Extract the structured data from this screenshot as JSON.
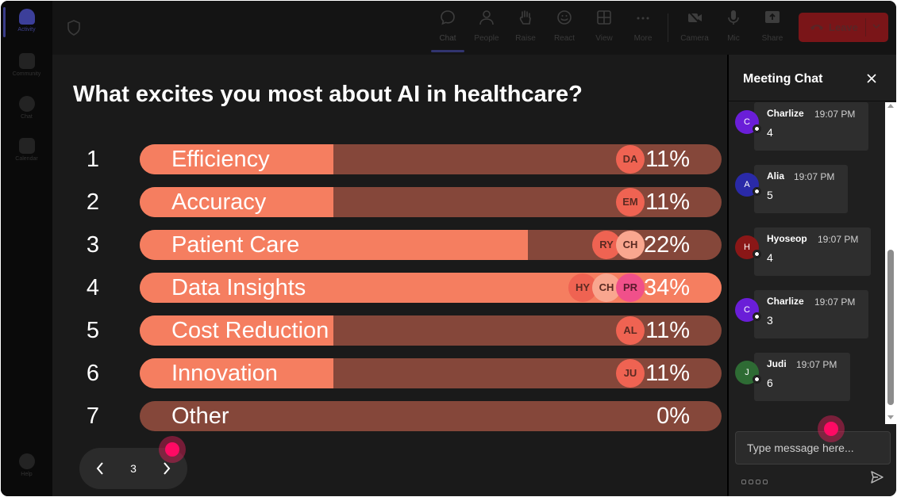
{
  "rail": {
    "items": [
      {
        "label": "Activity",
        "active": true
      },
      {
        "label": "Community"
      },
      {
        "label": "Chat"
      },
      {
        "label": "Calendar"
      }
    ],
    "help_label": "Help"
  },
  "toolbar": {
    "buttons": [
      {
        "label": "Chat",
        "icon": "chat-bubble-icon",
        "active": true
      },
      {
        "label": "People",
        "icon": "person-icon"
      },
      {
        "label": "Raise",
        "icon": "raise-hand-icon"
      },
      {
        "label": "React",
        "icon": "smiley-icon"
      },
      {
        "label": "View",
        "icon": "grid-view-icon"
      },
      {
        "label": "More",
        "icon": "more-dots-icon"
      },
      {
        "label": "Camera",
        "icon": "camera-off-icon"
      },
      {
        "label": "Mic",
        "icon": "mic-icon"
      },
      {
        "label": "Share",
        "icon": "share-icon"
      }
    ],
    "leave_label": "Leave",
    "leave_color": "#7a1518"
  },
  "poll": {
    "title": "What excites you most about AI in healthcare?",
    "options": [
      {
        "num": "1",
        "label": "Efficiency",
        "percent": "11%",
        "value": 0.11,
        "avatars": [
          "DA"
        ]
      },
      {
        "num": "2",
        "label": "Accuracy",
        "percent": "11%",
        "value": 0.11,
        "avatars": [
          "EM"
        ]
      },
      {
        "num": "3",
        "label": "Patient Care",
        "percent": "22%",
        "value": 0.22,
        "avatars": [
          "RY",
          "CH"
        ]
      },
      {
        "num": "4",
        "label": "Data Insights",
        "percent": "34%",
        "value": 0.34,
        "avatars": [
          "HY",
          "CH",
          "PR"
        ]
      },
      {
        "num": "5",
        "label": "Cost Reduction",
        "percent": "11%",
        "value": 0.11,
        "avatars": [
          "AL"
        ]
      },
      {
        "num": "6",
        "label": "Innovation",
        "percent": "11%",
        "value": 0.11,
        "avatars": [
          "JU"
        ]
      },
      {
        "num": "7",
        "label": "Other",
        "percent": "0%",
        "value": 0,
        "avatars": []
      }
    ],
    "colors": {
      "fill": "#f57e60",
      "track": "#85473a"
    },
    "page": "3"
  },
  "chat": {
    "title": "Meeting Chat",
    "messages": [
      {
        "initial": "C",
        "name": "Charlize",
        "time": "19:07 PM",
        "text": "4",
        "color": "#6a1ed8"
      },
      {
        "initial": "A",
        "name": "Alia",
        "time": "19:07 PM",
        "text": "5",
        "color": "#2a2aa8"
      },
      {
        "initial": "H",
        "name": "Hyoseop",
        "time": "19:07 PM",
        "text": "4",
        "color": "#8a1717"
      },
      {
        "initial": "C",
        "name": "Charlize",
        "time": "19:07 PM",
        "text": "3",
        "color": "#6a1ed8"
      },
      {
        "initial": "J",
        "name": "Judi",
        "time": "19:07 PM",
        "text": "6",
        "color": "#2e6b34"
      }
    ],
    "input_placeholder": "Type message here..."
  }
}
